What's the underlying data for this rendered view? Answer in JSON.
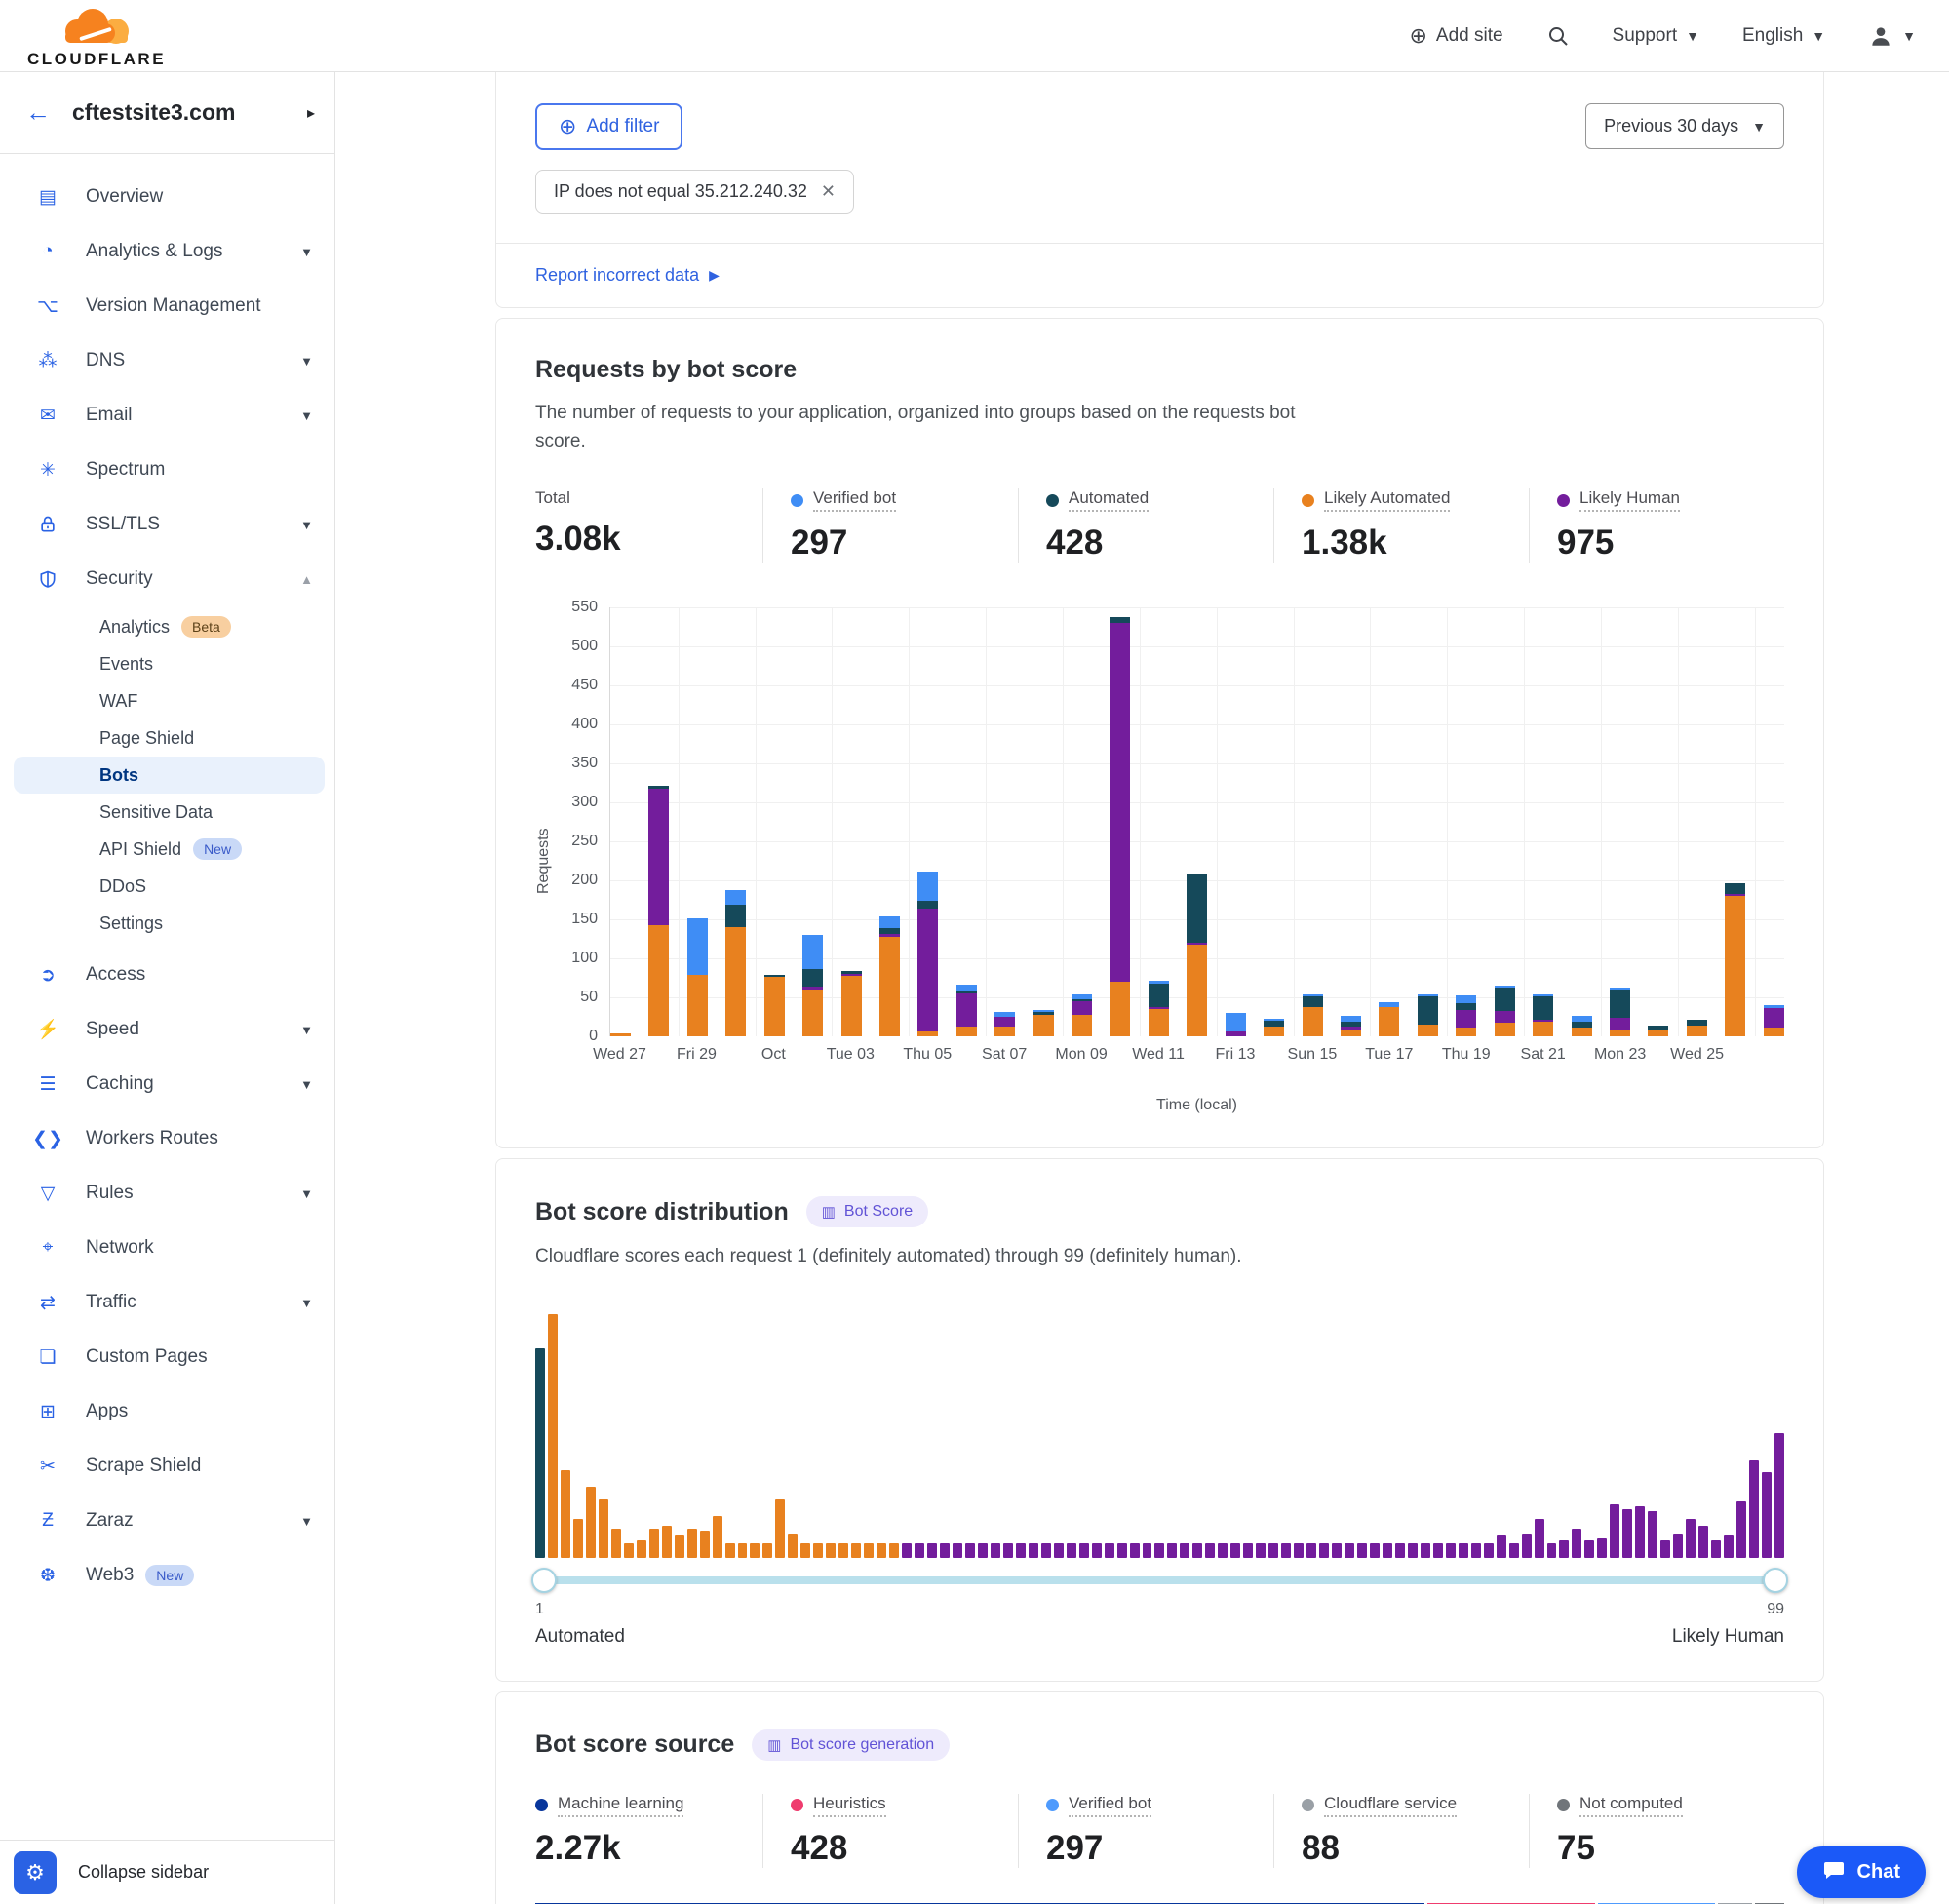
{
  "header": {
    "brand": "CLOUDFLARE",
    "add_site": "Add site",
    "support": "Support",
    "language": "English"
  },
  "sidebar": {
    "site": "cftestsite3.com",
    "items": [
      {
        "label": "Overview",
        "icon": "overview-icon",
        "glyph": "▤"
      },
      {
        "label": "Analytics & Logs",
        "icon": "analytics-logs-icon",
        "glyph": "◔",
        "caret": "down"
      },
      {
        "label": "Version Management",
        "icon": "version-management-icon",
        "glyph": "⌥"
      },
      {
        "label": "DNS",
        "icon": "dns-icon",
        "glyph": "⁂",
        "caret": "down"
      },
      {
        "label": "Email",
        "icon": "email-icon",
        "glyph": "✉",
        "caret": "down"
      },
      {
        "label": "Spectrum",
        "icon": "spectrum-icon",
        "glyph": "✳"
      },
      {
        "label": "SSL/TLS",
        "icon": "ssl-tls-lock-icon",
        "glyph": "svg:lock",
        "caret": "down"
      },
      {
        "label": "Security",
        "icon": "security-shield-icon",
        "glyph": "svg:shield",
        "caret": "up",
        "children": [
          {
            "label": "Analytics",
            "badge": "Beta",
            "badge_style": "beta"
          },
          {
            "label": "Events"
          },
          {
            "label": "WAF"
          },
          {
            "label": "Page Shield"
          },
          {
            "label": "Bots",
            "active": true
          },
          {
            "label": "Sensitive Data"
          },
          {
            "label": "API Shield",
            "badge": "New",
            "badge_style": "new"
          },
          {
            "label": "DDoS"
          },
          {
            "label": "Settings"
          }
        ]
      },
      {
        "label": "Access",
        "icon": "access-icon",
        "glyph": "➲"
      },
      {
        "label": "Speed",
        "icon": "speed-icon",
        "glyph": "⚡",
        "caret": "down"
      },
      {
        "label": "Caching",
        "icon": "caching-icon",
        "glyph": "☰",
        "caret": "down"
      },
      {
        "label": "Workers Routes",
        "icon": "workers-routes-icon",
        "glyph": "❮❯"
      },
      {
        "label": "Rules",
        "icon": "rules-icon",
        "glyph": "▽",
        "caret": "down"
      },
      {
        "label": "Network",
        "icon": "network-icon",
        "glyph": "⌖"
      },
      {
        "label": "Traffic",
        "icon": "traffic-icon",
        "glyph": "⇄",
        "caret": "down"
      },
      {
        "label": "Custom Pages",
        "icon": "custom-pages-icon",
        "glyph": "❏"
      },
      {
        "label": "Apps",
        "icon": "apps-icon",
        "glyph": "⊞"
      },
      {
        "label": "Scrape Shield",
        "icon": "scrape-shield-icon",
        "glyph": "✂"
      },
      {
        "label": "Zaraz",
        "icon": "zaraz-icon",
        "glyph": "Ƶ",
        "caret": "down"
      },
      {
        "label": "Web3",
        "icon": "web3-icon",
        "glyph": "❆",
        "badge": "New",
        "badge_style": "new"
      }
    ],
    "collapse": "Collapse sidebar"
  },
  "toolbar": {
    "add_filter": "Add filter",
    "filter_chip": "IP does not equal 35.212.240.32",
    "range": "Previous 30 days",
    "report_link": "Report incorrect data"
  },
  "requests_card": {
    "title": "Requests by bot score",
    "description": "The number of requests to your application, organized into groups based on the requests bot score.",
    "stats": [
      {
        "label": "Total",
        "value": "3.08k",
        "color": null
      },
      {
        "label": "Verified bot",
        "value": "297",
        "color": "#3f8df5"
      },
      {
        "label": "Automated",
        "value": "428",
        "color": "#15495a"
      },
      {
        "label": "Likely Automated",
        "value": "1.38k",
        "color": "#e8811f"
      },
      {
        "label": "Likely Human",
        "value": "975",
        "color": "#731d9c"
      }
    ]
  },
  "distribution_card": {
    "title": "Bot score distribution",
    "pill": "Bot Score",
    "description": "Cloudflare scores each request 1 (definitely automated) through 99 (definitely human).",
    "left_num": "1",
    "right_num": "99",
    "left_word": "Automated",
    "right_word": "Likely Human"
  },
  "source_card": {
    "title": "Bot score source",
    "pill": "Bot score generation",
    "stats": [
      {
        "label": "Machine learning",
        "value": "2.27k",
        "color": "#08369c"
      },
      {
        "label": "Heuristics",
        "value": "428",
        "color": "#ef3c6e"
      },
      {
        "label": "Verified bot",
        "value": "297",
        "color": "#4f9bfd"
      },
      {
        "label": "Cloudflare service",
        "value": "88",
        "color": "#9aa0a6"
      },
      {
        "label": "Not computed",
        "value": "75",
        "color": "#70757a"
      }
    ]
  },
  "chat_label": "Chat",
  "chart_data": [
    {
      "type": "bar",
      "title": "Requests by bot score",
      "xlabel": "Time (local)",
      "ylabel": "Requests",
      "ylim": [
        0,
        550
      ],
      "y_ticks": [
        "550",
        "500",
        "450",
        "400",
        "350",
        "300",
        "250",
        "200",
        "150",
        "100",
        "50",
        "0"
      ],
      "x_tick_labels": [
        "Wed 27",
        "Fri 29",
        "Oct",
        "Tue 03",
        "Thu 05",
        "Sat 07",
        "Mon 09",
        "Wed 11",
        "Fri 13",
        "Sun 15",
        "Tue 17",
        "Thu 19",
        "Sat 21",
        "Mon 23",
        "Wed 25"
      ],
      "grid": true,
      "legend_position": "top",
      "series": [
        {
          "name": "Likely Automated",
          "color": "#e8811f",
          "values": [
            4,
            143,
            79,
            140,
            76,
            60,
            77,
            127,
            6,
            12,
            12,
            27,
            27,
            70,
            35,
            118,
            0,
            13,
            38,
            8,
            37,
            15,
            11,
            17,
            19,
            11,
            9,
            9,
            14,
            180,
            11
          ]
        },
        {
          "name": "Likely Human",
          "color": "#731d9c",
          "values": [
            0,
            175,
            0,
            0,
            0,
            4,
            3,
            4,
            157,
            42,
            13,
            0,
            17,
            460,
            3,
            3,
            6,
            0,
            0,
            5,
            0,
            0,
            23,
            15,
            2,
            0,
            15,
            0,
            0,
            2,
            25
          ]
        },
        {
          "name": "Automated",
          "color": "#15495a",
          "values": [
            0,
            4,
            0,
            29,
            3,
            23,
            4,
            8,
            10,
            4,
            0,
            4,
            3,
            7,
            30,
            89,
            0,
            8,
            14,
            6,
            0,
            36,
            9,
            30,
            30,
            8,
            36,
            5,
            7,
            14,
            0
          ]
        },
        {
          "name": "Verified bot",
          "color": "#3f8df5",
          "values": [
            0,
            0,
            72,
            19,
            0,
            44,
            0,
            15,
            37,
            7,
            6,
            3,
            6,
            0,
            4,
            0,
            24,
            3,
            2,
            7,
            6,
            2,
            10,
            2,
            2,
            7,
            2,
            0,
            0,
            0,
            4
          ]
        }
      ]
    },
    {
      "type": "bar",
      "title": "Bot score distribution",
      "x_range": [
        1,
        99
      ],
      "note": "relative bar heights, % of tallest; score 1 = Automated (teal), 2-29 Likely Automated (orange), 30-99 Likely Human (purple)",
      "colors": {
        "automated": "#15495a",
        "likely_automated": "#e8811f",
        "likely_human": "#731d9c"
      },
      "color_breaks": {
        "automated": [
          1,
          1
        ],
        "likely_automated": [
          2,
          29
        ],
        "likely_human": [
          30,
          99
        ]
      },
      "values": [
        86,
        100,
        36,
        16,
        29,
        24,
        12,
        6,
        7,
        12,
        13,
        9,
        12,
        11,
        17,
        6,
        6,
        6,
        6,
        24,
        10,
        6,
        6,
        6,
        6,
        6,
        6,
        6,
        6,
        6,
        6,
        6,
        6,
        6,
        6,
        6,
        6,
        6,
        6,
        6,
        6,
        6,
        6,
        6,
        6,
        6,
        6,
        6,
        6,
        6,
        6,
        6,
        6,
        6,
        6,
        6,
        6,
        6,
        6,
        6,
        6,
        6,
        6,
        6,
        6,
        6,
        6,
        6,
        6,
        6,
        6,
        6,
        6,
        6,
        6,
        6,
        9,
        6,
        10,
        16,
        6,
        7,
        12,
        7,
        8,
        22,
        20,
        21,
        19,
        7,
        10,
        16,
        13,
        7,
        9,
        23,
        40,
        35,
        51
      ]
    },
    {
      "type": "stacked-bar",
      "title": "Bot score source",
      "segments": [
        {
          "name": "Machine learning",
          "value": 2270,
          "display": "2.27k",
          "color": "#08369c"
        },
        {
          "name": "Heuristics",
          "value": 428,
          "display": "428",
          "color": "#ef3c6e"
        },
        {
          "name": "Verified bot",
          "value": 297,
          "display": "297",
          "color": "#4f9bfd"
        },
        {
          "name": "Cloudflare service",
          "value": 88,
          "display": "88",
          "color": "#9aa0a6"
        },
        {
          "name": "Not computed",
          "value": 75,
          "display": "75",
          "color": "#70757a"
        }
      ]
    }
  ]
}
